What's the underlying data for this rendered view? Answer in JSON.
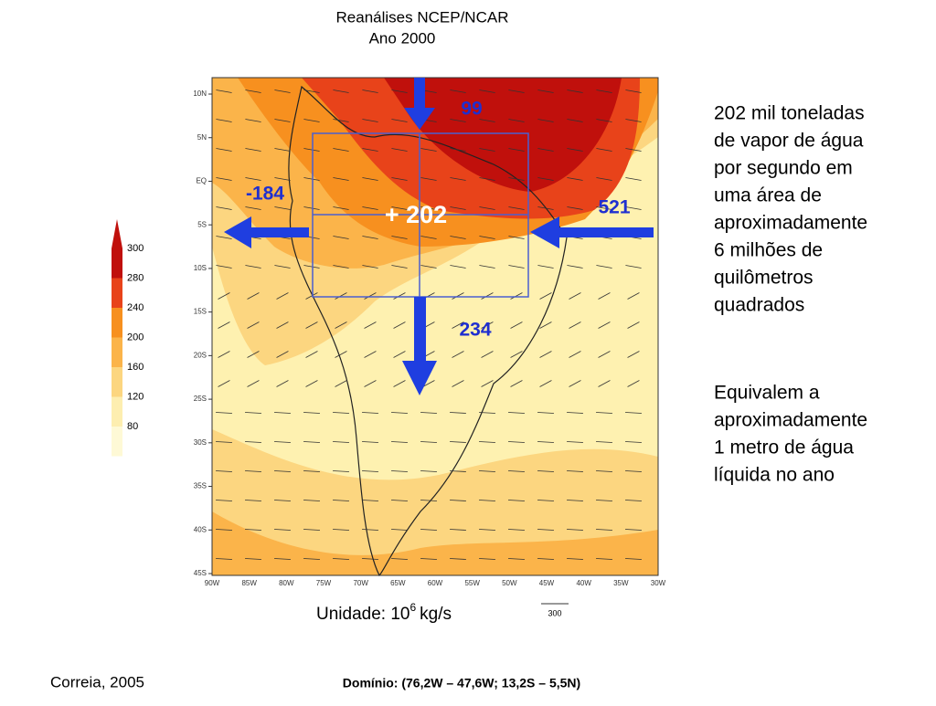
{
  "header": {
    "title": "Reanálises NCEP/NCAR",
    "subtitle": "Ano 2000"
  },
  "legend": {
    "labels": [
      "300",
      "280",
      "240",
      "200",
      "160",
      "120",
      "80"
    ],
    "colors": [
      "#c0100c",
      "#e8431a",
      "#f7901f",
      "#fbb44a",
      "#fcd680",
      "#fdeeb0",
      "#fef9d6"
    ]
  },
  "map": {
    "lat_labels": [
      "10N",
      "5N",
      "EQ",
      "5S",
      "10S",
      "15S",
      "20S",
      "25S",
      "30S",
      "35S",
      "40S",
      "45S"
    ],
    "lon_labels": [
      "90W",
      "85W",
      "80W",
      "75W",
      "70W",
      "65W",
      "60W",
      "55W",
      "50W",
      "45W",
      "40W",
      "35W",
      "30W"
    ],
    "fluxes": {
      "north": "99",
      "west": "-184",
      "east": "521",
      "net": "+ 202",
      "south": "234"
    },
    "vector_scale": "300"
  },
  "unit": {
    "prefix": "Unidade: 10",
    "exponent": "6",
    "suffix": "kg/s"
  },
  "notes": [
    [
      "202 mil toneladas",
      "de vapor de água",
      "por segundo em",
      "uma área de",
      "aproximadamente",
      "6 milhões de",
      "quilômetros",
      "quadrados"
    ],
    [
      "Equivalem a",
      "aproximadamente",
      "1 metro de água",
      "líquida no ano"
    ]
  ],
  "source": "Correia, 2005",
  "domain": "Domínio: (76,2W – 47,6W; 13,2S – 5,5N)"
}
